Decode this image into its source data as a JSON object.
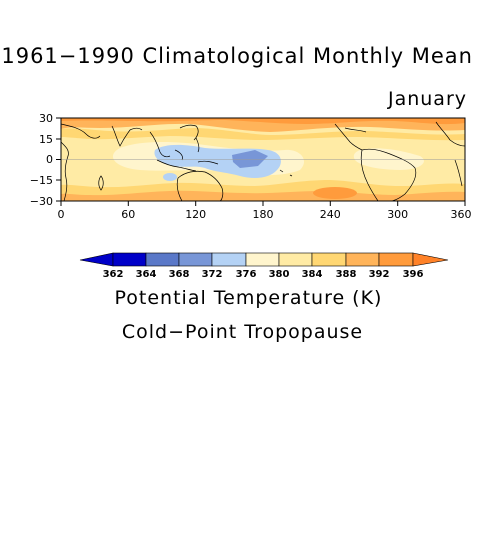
{
  "title": "1961−1990 Climatological Monthly Mean",
  "month": "January",
  "quantity_label": "Potential Temperature (K)",
  "level_label": "Cold−Point Tropopause",
  "lat_ticks": [
    "30",
    "15",
    "0",
    "−15",
    "−30"
  ],
  "lon_ticks": [
    "0",
    "60",
    "120",
    "180",
    "240",
    "300",
    "360"
  ],
  "colorbar": {
    "levels": [
      "362",
      "364",
      "368",
      "372",
      "376",
      "380",
      "384",
      "388",
      "392",
      "396"
    ],
    "colors": [
      "#0000c8",
      "#5a78c8",
      "#7896d7",
      "#b4d2f5",
      "#fff5cd",
      "#ffeba5",
      "#ffd773",
      "#ffb45a",
      "#ff9b3c",
      "#ff8228"
    ]
  },
  "map_colors": {
    "orange_dark": "#ff9b3c",
    "orange": "#ffb45a",
    "gold": "#ffd773",
    "light_yellow": "#ffeba5",
    "cream": "#fff5cd",
    "light_blue": "#b4d2f5",
    "blue": "#7896d7"
  }
}
